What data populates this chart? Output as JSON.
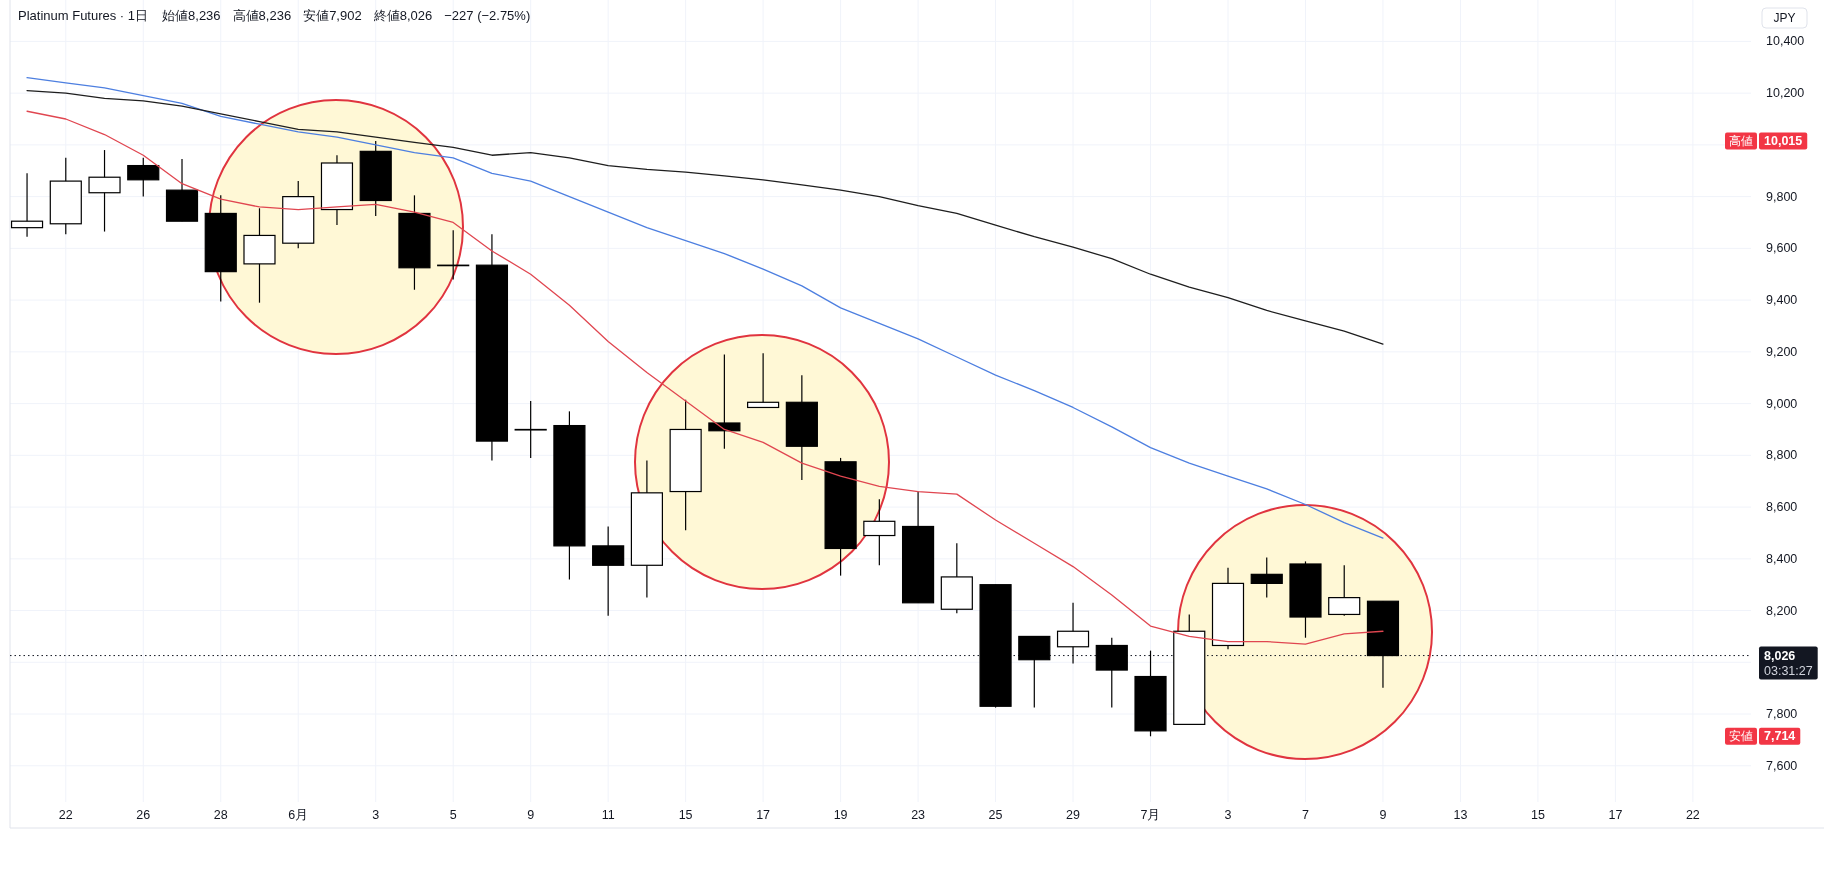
{
  "chart_data": {
    "type": "candlestick",
    "title": "Platinum Futures · 1日",
    "ylabel": "JPY",
    "categories": [
      null,
      "22",
      null,
      "26",
      null,
      "28",
      null,
      "6月",
      null,
      "3",
      null,
      "5",
      null,
      "9",
      null,
      "11",
      null,
      "15",
      null,
      "17",
      null,
      "19",
      null,
      "23",
      null,
      "25",
      null,
      "29",
      null,
      "7月",
      null,
      "3",
      null,
      "7",
      null,
      "9",
      null,
      "13",
      null,
      "15",
      null,
      "17",
      null,
      "22",
      null
    ],
    "ohlc": [
      [
        9680,
        9890,
        9645,
        9705
      ],
      [
        9695,
        9950,
        9655,
        9860
      ],
      [
        9815,
        9980,
        9665,
        9875
      ],
      [
        9920,
        9950,
        9800,
        9865
      ],
      [
        9825,
        9945,
        9705,
        9705
      ],
      [
        9735,
        9805,
        9395,
        9510
      ],
      [
        9540,
        9755,
        9390,
        9650
      ],
      [
        9620,
        9860,
        9600,
        9800
      ],
      [
        9750,
        9960,
        9690,
        9930
      ],
      [
        9975,
        10015,
        9725,
        9785
      ],
      [
        9735,
        9805,
        9440,
        9525
      ],
      [
        9535,
        9670,
        9480,
        9535
      ],
      [
        9535,
        9655,
        8780,
        8855
      ],
      [
        8900,
        9010,
        8790,
        8900
      ],
      [
        8915,
        8970,
        8320,
        8450
      ],
      [
        8450,
        8525,
        8180,
        8375
      ],
      [
        8375,
        8780,
        8250,
        8655
      ],
      [
        8660,
        9015,
        8510,
        8900
      ],
      [
        8925,
        9190,
        8825,
        8895
      ],
      [
        8985,
        9195,
        8985,
        9005
      ],
      [
        9005,
        9110,
        8705,
        8835
      ],
      [
        8775,
        8790,
        8335,
        8440
      ],
      [
        8490,
        8630,
        8375,
        8545
      ],
      [
        8525,
        8660,
        8230,
        8230
      ],
      [
        8205,
        8460,
        8190,
        8330
      ],
      [
        8300,
        8300,
        7825,
        7830
      ],
      [
        8100,
        8100,
        7825,
        8010
      ],
      [
        8060,
        8230,
        7995,
        8120
      ],
      [
        8065,
        8095,
        7825,
        7970
      ],
      [
        7945,
        8045,
        7714,
        7735
      ],
      [
        7760,
        8185,
        7760,
        8120
      ],
      [
        8065,
        8365,
        8050,
        8305
      ],
      [
        8340,
        8405,
        8250,
        8305
      ],
      [
        8380,
        8390,
        8095,
        8175
      ],
      [
        8185,
        8375,
        8180,
        8250
      ],
      [
        8236,
        8236,
        7902,
        8026
      ],
      null,
      null,
      null,
      null,
      null,
      null,
      null,
      null,
      null
    ],
    "colors": [
      "#ffffff",
      "#ffffff",
      "#ffffff",
      "#000000",
      "#000000",
      "#000000",
      "#ffffff",
      "#ffffff",
      "#ffffff",
      "#000000",
      "#000000",
      "#ffffff",
      "#000000",
      "#ffffff",
      "#000000",
      "#000000",
      "#ffffff",
      "#ffffff",
      "#000000",
      "#ffffff",
      "#000000",
      "#000000",
      "#ffffff",
      "#000000",
      "#ffffff",
      "#000000",
      "#000000",
      "#ffffff",
      "#000000",
      "#000000",
      "#ffffff",
      "#ffffff",
      "#000000",
      "#000000",
      "#ffffff",
      "#000000",
      null,
      null,
      null,
      null,
      null,
      null,
      null,
      null,
      null
    ],
    "series": [
      {
        "type": "line",
        "color": "#e04650",
        "values": [
          10130,
          10100,
          10040,
          9960,
          9850,
          9790,
          9760,
          9750,
          9760,
          9770,
          9740,
          9700,
          9590,
          9500,
          9380,
          9240,
          9120,
          9010,
          8900,
          8850,
          8770,
          8720,
          8680,
          8660,
          8650,
          8550,
          8460,
          8370,
          8260,
          8140,
          8100,
          8080,
          8080,
          8070,
          8110,
          8120,
          null,
          null,
          null,
          null,
          null,
          null,
          null,
          null,
          null
        ]
      },
      {
        "type": "line",
        "color": "#4d7fe0",
        "values": [
          10260,
          10240,
          10220,
          10190,
          10160,
          10110,
          10080,
          10050,
          10030,
          10000,
          9970,
          9950,
          9890,
          9860,
          9800,
          9740,
          9680,
          9630,
          9580,
          9520,
          9455,
          9370,
          9310,
          9250,
          9180,
          9110,
          9050,
          8985,
          8910,
          8830,
          8770,
          8720,
          8670,
          8610,
          8540,
          8480,
          null,
          null,
          null,
          null,
          null,
          null,
          null,
          null,
          null
        ]
      },
      {
        "type": "line",
        "color": "#1e1e1e",
        "values": [
          10210,
          10200,
          10180,
          10170,
          10150,
          10120,
          10090,
          10060,
          10050,
          10030,
          10010,
          9990,
          9960,
          9970,
          9950,
          9920,
          9905,
          9895,
          9880,
          9865,
          9845,
          9825,
          9800,
          9765,
          9735,
          9690,
          9645,
          9605,
          9560,
          9500,
          9450,
          9410,
          9360,
          9320,
          9280,
          9230,
          null,
          null,
          null,
          null,
          null,
          null,
          null,
          null,
          null
        ]
      }
    ],
    "ylim": [
      7460,
      10560
    ],
    "yticks": [
      {
        "value": 7600,
        "label": "7,600"
      },
      {
        "value": 7800,
        "label": "7,800"
      },
      {
        "value": 8000,
        "label": null
      },
      {
        "value": 8200,
        "label": "8,200"
      },
      {
        "value": 8400,
        "label": "8,400"
      },
      {
        "value": 8600,
        "label": "8,600"
      },
      {
        "value": 8800,
        "label": "8,800"
      },
      {
        "value": 9000,
        "label": "9,000"
      },
      {
        "value": 9200,
        "label": "9,200"
      },
      {
        "value": 9400,
        "label": "9,400"
      },
      {
        "value": 9600,
        "label": "9,600"
      },
      {
        "value": 9800,
        "label": "9,800"
      },
      {
        "value": 10000,
        "label": null
      },
      {
        "value": 10200,
        "label": "10,200"
      },
      {
        "value": 10400,
        "label": "10,400"
      }
    ],
    "grid": true,
    "ref_lines": [
      {
        "axis": "y",
        "value": 8026,
        "label": "8,026 03:31:27",
        "color": "#131722",
        "line_style": "dotted"
      }
    ],
    "annotations": [
      "始値8,236",
      "高値8,236",
      "安値7,902",
      "終値8,026",
      "−227 (−2.75%)",
      "高値 10,015",
      "安値 7,714"
    ]
  }
}
